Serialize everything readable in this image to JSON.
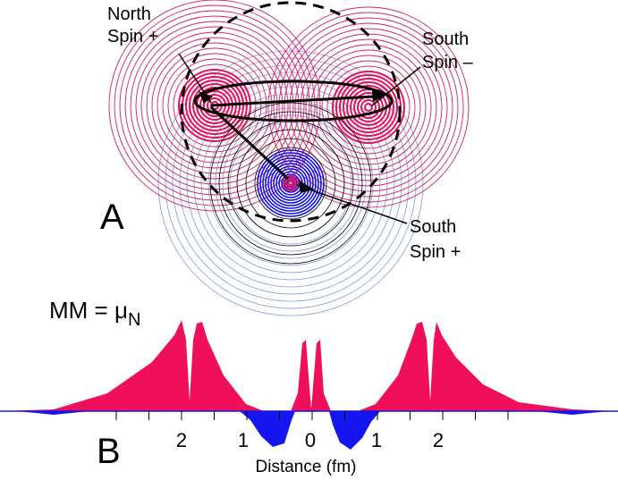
{
  "annotations": [
    {
      "lines": [
        "North",
        "Spin +"
      ]
    },
    {
      "lines": [
        "South",
        "Spin –"
      ]
    },
    {
      "lines": [
        "South",
        "Spin +"
      ]
    }
  ],
  "panels": [
    "A",
    "B"
  ],
  "moment": {
    "text": "MM = μ",
    "subscript": "N"
  },
  "axis": {
    "ticks": [
      "2",
      "1",
      "0",
      "1",
      "2"
    ],
    "title": "Distance (fm)"
  }
}
